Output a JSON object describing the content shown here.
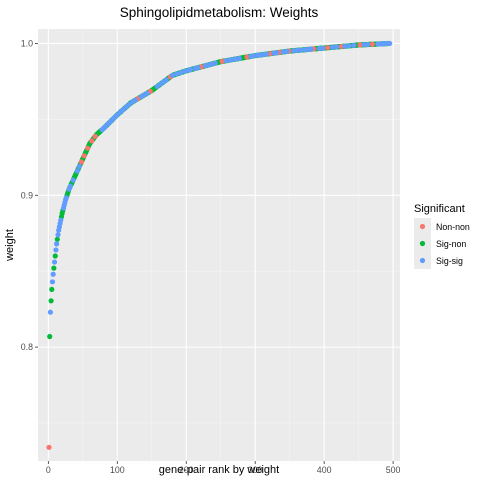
{
  "chart_data": {
    "type": "scatter",
    "title": "Sphingolipidmetabolism: Weights",
    "xlabel": "gene-pair rank by weight",
    "ylabel": "weight",
    "xlim": [
      -15,
      510
    ],
    "ylim": [
      0.725,
      1.0095
    ],
    "x_ticks": [
      0,
      100,
      200,
      300,
      400,
      500
    ],
    "y_ticks": [
      0.8,
      0.9,
      1.0
    ],
    "y_tick_labels": [
      "0.8",
      "0.9",
      "1.0"
    ],
    "grid": true,
    "legend": {
      "title": "Significant",
      "placement": "right",
      "entries": [
        {
          "label": "Non-non",
          "color": "#f8766d"
        },
        {
          "label": "Sig-non",
          "color": "#00ba38"
        },
        {
          "label": "Sig-sig",
          "color": "#619cff"
        }
      ]
    },
    "n_points": 495,
    "curve_knots": [
      [
        1,
        0.734
      ],
      [
        2,
        0.807
      ],
      [
        3,
        0.823
      ],
      [
        5,
        0.838
      ],
      [
        7,
        0.848
      ],
      [
        10,
        0.86
      ],
      [
        12,
        0.868
      ],
      [
        15,
        0.877
      ],
      [
        20,
        0.888
      ],
      [
        25,
        0.897
      ],
      [
        30,
        0.904
      ],
      [
        40,
        0.914
      ],
      [
        50,
        0.924
      ],
      [
        60,
        0.934
      ],
      [
        70,
        0.94
      ],
      [
        80,
        0.944
      ],
      [
        100,
        0.953
      ],
      [
        120,
        0.961
      ],
      [
        150,
        0.969
      ],
      [
        180,
        0.979
      ],
      [
        200,
        0.982
      ],
      [
        250,
        0.988
      ],
      [
        300,
        0.992
      ],
      [
        350,
        0.995
      ],
      [
        400,
        0.997
      ],
      [
        450,
        0.999
      ],
      [
        495,
        1.0
      ]
    ],
    "series": [
      {
        "name": "Non-non",
        "color": "#f8766d",
        "ranks": [
          1,
          48,
          52,
          57,
          63,
          68,
          130,
          148,
          177,
          222,
          252,
          288,
          322,
          335,
          349,
          385,
          405,
          425,
          452,
          470
        ]
      },
      {
        "name": "Sig-non",
        "color": "#00ba38",
        "ranks": "all remaining ranks not listed in Non-non or Sig-sig"
      },
      {
        "name": "Sig-sig",
        "color": "#619cff",
        "ranks": [
          3,
          6,
          7,
          9,
          11,
          12,
          14,
          15,
          16,
          17,
          18,
          22,
          23,
          24,
          25,
          26,
          30,
          32,
          36,
          42,
          45,
          78,
          79,
          81,
          83,
          87,
          90,
          94,
          96,
          99,
          103,
          107,
          109,
          113,
          117,
          122,
          126,
          135,
          139,
          143,
          158,
          163,
          167,
          171,
          180,
          186,
          192,
          198,
          203,
          206,
          213,
          217,
          228,
          232,
          237,
          242,
          258,
          263,
          267,
          272,
          277,
          294,
          298,
          303,
          307,
          312,
          316,
          327,
          331,
          341,
          346,
          356,
          361,
          366,
          372,
          377,
          381,
          393,
          398,
          412,
          418,
          430,
          436,
          443,
          458,
          463,
          478,
          482,
          486,
          489,
          493,
          495
        ]
      }
    ]
  }
}
